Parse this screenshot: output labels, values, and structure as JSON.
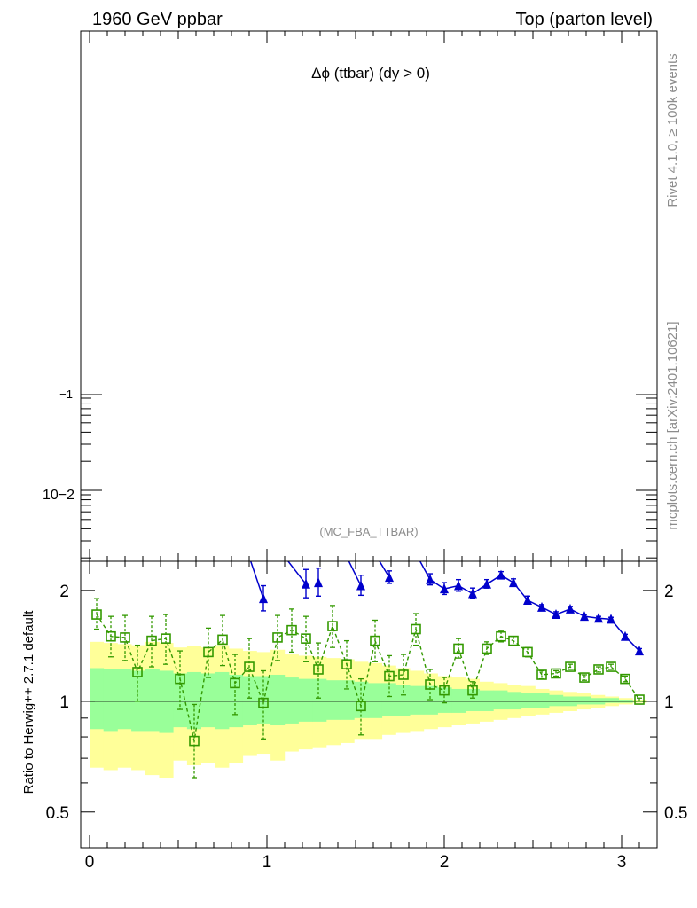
{
  "header": {
    "left": "1960 GeV ppbar",
    "right": "Top (parton level)"
  },
  "side": {
    "rivet": "Rivet 4.1.0, ≥ 100k events",
    "mcplots": "mcplots.cern.ch [arXiv:2401.10621]"
  },
  "main_panel": {
    "title": "Δϕ (ttbar) (dy > 0)",
    "analysis": "(MC_FBA_TTBAR)",
    "yscale": "log",
    "ytick_labels": [
      "−1",
      "10−2"
    ]
  },
  "chart_data": {
    "type": "line",
    "title": "Δϕ (ttbar) (dy > 0)",
    "xlabel": "",
    "ylabel": "Ratio to Herwig++ 2.7.1 default",
    "xlim": [
      -0.05,
      3.2
    ],
    "ylim": [
      0.4,
      2.4
    ],
    "yscale": "log",
    "x_ticks": [
      0,
      1,
      2,
      3
    ],
    "x_tick_labels": [
      "0",
      "1",
      "2",
      "3"
    ],
    "y_ticks": [
      0.5,
      1,
      2
    ],
    "y_tick_labels": [
      "0.5",
      "1",
      "2"
    ],
    "reference_line": 1,
    "bin_edges": [
      0,
      0.0785,
      0.157,
      0.2355,
      0.314,
      0.3925,
      0.471,
      0.5495,
      0.628,
      0.7065,
      0.785,
      0.8635,
      0.942,
      1.0205,
      1.099,
      1.1775,
      1.256,
      1.3345,
      1.413,
      1.4915,
      1.57,
      1.6485,
      1.727,
      1.8055,
      1.884,
      1.9625,
      2.041,
      2.1195,
      2.198,
      2.2765,
      2.355,
      2.4335,
      2.512,
      2.5905,
      2.669,
      2.7475,
      2.826,
      2.9045,
      2.983,
      3.0615,
      3.14
    ],
    "bands": [
      {
        "name": "yellow uncertainty band",
        "color": "#ffff99",
        "low": [
          0.66,
          0.65,
          0.66,
          0.65,
          0.63,
          0.62,
          0.69,
          0.67,
          0.68,
          0.66,
          0.68,
          0.71,
          0.72,
          0.69,
          0.73,
          0.74,
          0.75,
          0.76,
          0.77,
          0.79,
          0.79,
          0.81,
          0.82,
          0.83,
          0.84,
          0.85,
          0.86,
          0.87,
          0.88,
          0.89,
          0.9,
          0.91,
          0.92,
          0.93,
          0.94,
          0.95,
          0.96,
          0.97,
          0.98,
          0.99
        ],
        "high": [
          1.45,
          1.44,
          1.43,
          1.42,
          1.45,
          1.44,
          1.4,
          1.41,
          1.4,
          1.42,
          1.39,
          1.37,
          1.36,
          1.38,
          1.34,
          1.33,
          1.32,
          1.31,
          1.3,
          1.28,
          1.27,
          1.25,
          1.23,
          1.21,
          1.19,
          1.17,
          1.16,
          1.15,
          1.13,
          1.12,
          1.11,
          1.1,
          1.08,
          1.07,
          1.06,
          1.05,
          1.04,
          1.03,
          1.02,
          1.01
        ]
      },
      {
        "name": "green uncertainty band",
        "color": "#99ff99",
        "low": [
          0.84,
          0.83,
          0.84,
          0.83,
          0.83,
          0.82,
          0.85,
          0.84,
          0.85,
          0.84,
          0.85,
          0.86,
          0.87,
          0.86,
          0.87,
          0.88,
          0.88,
          0.89,
          0.89,
          0.9,
          0.9,
          0.91,
          0.91,
          0.92,
          0.92,
          0.93,
          0.93,
          0.94,
          0.94,
          0.95,
          0.95,
          0.96,
          0.96,
          0.97,
          0.97,
          0.98,
          0.98,
          0.99,
          0.99,
          0.995
        ],
        "high": [
          1.23,
          1.22,
          1.22,
          1.21,
          1.22,
          1.21,
          1.19,
          1.2,
          1.19,
          1.2,
          1.18,
          1.17,
          1.17,
          1.18,
          1.16,
          1.15,
          1.15,
          1.14,
          1.14,
          1.13,
          1.12,
          1.12,
          1.11,
          1.1,
          1.1,
          1.09,
          1.08,
          1.08,
          1.07,
          1.07,
          1.06,
          1.05,
          1.05,
          1.04,
          1.03,
          1.03,
          1.02,
          1.02,
          1.01,
          1.005
        ]
      }
    ],
    "series": [
      {
        "name": "green open squares",
        "color": "#339900",
        "marker": "open-square",
        "line": "dashed",
        "x": [
          0.04,
          0.12,
          0.2,
          0.27,
          0.35,
          0.43,
          0.51,
          0.59,
          0.67,
          0.75,
          0.82,
          0.9,
          0.98,
          1.06,
          1.14,
          1.22,
          1.29,
          1.37,
          1.45,
          1.53,
          1.61,
          1.69,
          1.77,
          1.84,
          1.92,
          2.0,
          2.08,
          2.16,
          2.24,
          2.32,
          2.39,
          2.47,
          2.55,
          2.63,
          2.71,
          2.79,
          2.87,
          2.94,
          3.02,
          3.1
        ],
        "y": [
          1.72,
          1.5,
          1.49,
          1.2,
          1.46,
          1.48,
          1.15,
          0.78,
          1.36,
          1.47,
          1.12,
          1.24,
          0.99,
          1.49,
          1.56,
          1.48,
          1.22,
          1.6,
          1.26,
          0.97,
          1.46,
          1.17,
          1.18,
          1.57,
          1.11,
          1.07,
          1.39,
          1.07,
          1.39,
          1.5,
          1.46,
          1.36,
          1.18,
          1.19,
          1.24,
          1.16,
          1.22,
          1.24,
          1.15,
          1.01
        ],
        "err_low": [
          0.15,
          0.18,
          0.2,
          0.2,
          0.22,
          0.22,
          0.2,
          0.16,
          0.2,
          0.22,
          0.2,
          0.22,
          0.2,
          0.2,
          0.2,
          0.2,
          0.2,
          0.2,
          0.18,
          0.16,
          0.18,
          0.14,
          0.14,
          0.15,
          0.1,
          0.08,
          0.08,
          0.05,
          0.05,
          0.05,
          0.04,
          0.04,
          0.03,
          0.02,
          0.02,
          0.02,
          0.02,
          0.02,
          0.02,
          0.01
        ],
        "err_high": [
          0.18,
          0.2,
          0.22,
          0.22,
          0.24,
          0.24,
          0.22,
          0.2,
          0.22,
          0.24,
          0.22,
          0.24,
          0.22,
          0.22,
          0.22,
          0.22,
          0.22,
          0.22,
          0.2,
          0.18,
          0.2,
          0.16,
          0.16,
          0.16,
          0.11,
          0.09,
          0.09,
          0.06,
          0.06,
          0.05,
          0.04,
          0.04,
          0.03,
          0.02,
          0.02,
          0.02,
          0.02,
          0.02,
          0.02,
          0.01
        ]
      },
      {
        "name": "blue triangles",
        "color": "#0000cc",
        "marker": "filled-triangle",
        "line": "solid",
        "x": [
          0.98,
          1.22,
          1.29,
          1.53,
          1.69,
          1.92,
          2.0,
          2.08,
          2.16,
          2.24,
          2.32,
          2.39,
          2.47,
          2.55,
          2.63,
          2.71,
          2.79,
          2.87,
          2.94,
          3.02,
          3.1
        ],
        "y": [
          1.9,
          2.08,
          2.1,
          2.06,
          2.17,
          2.14,
          2.02,
          2.06,
          1.96,
          2.08,
          2.2,
          2.1,
          1.88,
          1.8,
          1.72,
          1.78,
          1.7,
          1.68,
          1.67,
          1.5,
          1.37
        ],
        "err_low": [
          0.14,
          0.17,
          0.17,
          0.12,
          0.08,
          0.07,
          0.07,
          0.07,
          0.06,
          0.05,
          0.04,
          0.04,
          0.04,
          0.03,
          0.03,
          0.03,
          0.02,
          0.02,
          0.02,
          0.02,
          0.02
        ],
        "err_high": [
          0.16,
          0.2,
          0.2,
          0.14,
          0.09,
          0.08,
          0.08,
          0.08,
          0.07,
          0.06,
          0.05,
          0.05,
          0.05,
          0.03,
          0.03,
          0.03,
          0.02,
          0.02,
          0.02,
          0.02,
          0.02
        ],
        "offscale_segments": [
          [
            0.9,
            0.98
          ],
          [
            1.1,
            1.22
          ],
          [
            1.29,
            1.35
          ],
          [
            1.45,
            1.53
          ],
          [
            1.53,
            1.6
          ],
          [
            1.62,
            1.69
          ],
          [
            1.69,
            1.76
          ],
          [
            1.85,
            1.92
          ]
        ]
      }
    ]
  }
}
